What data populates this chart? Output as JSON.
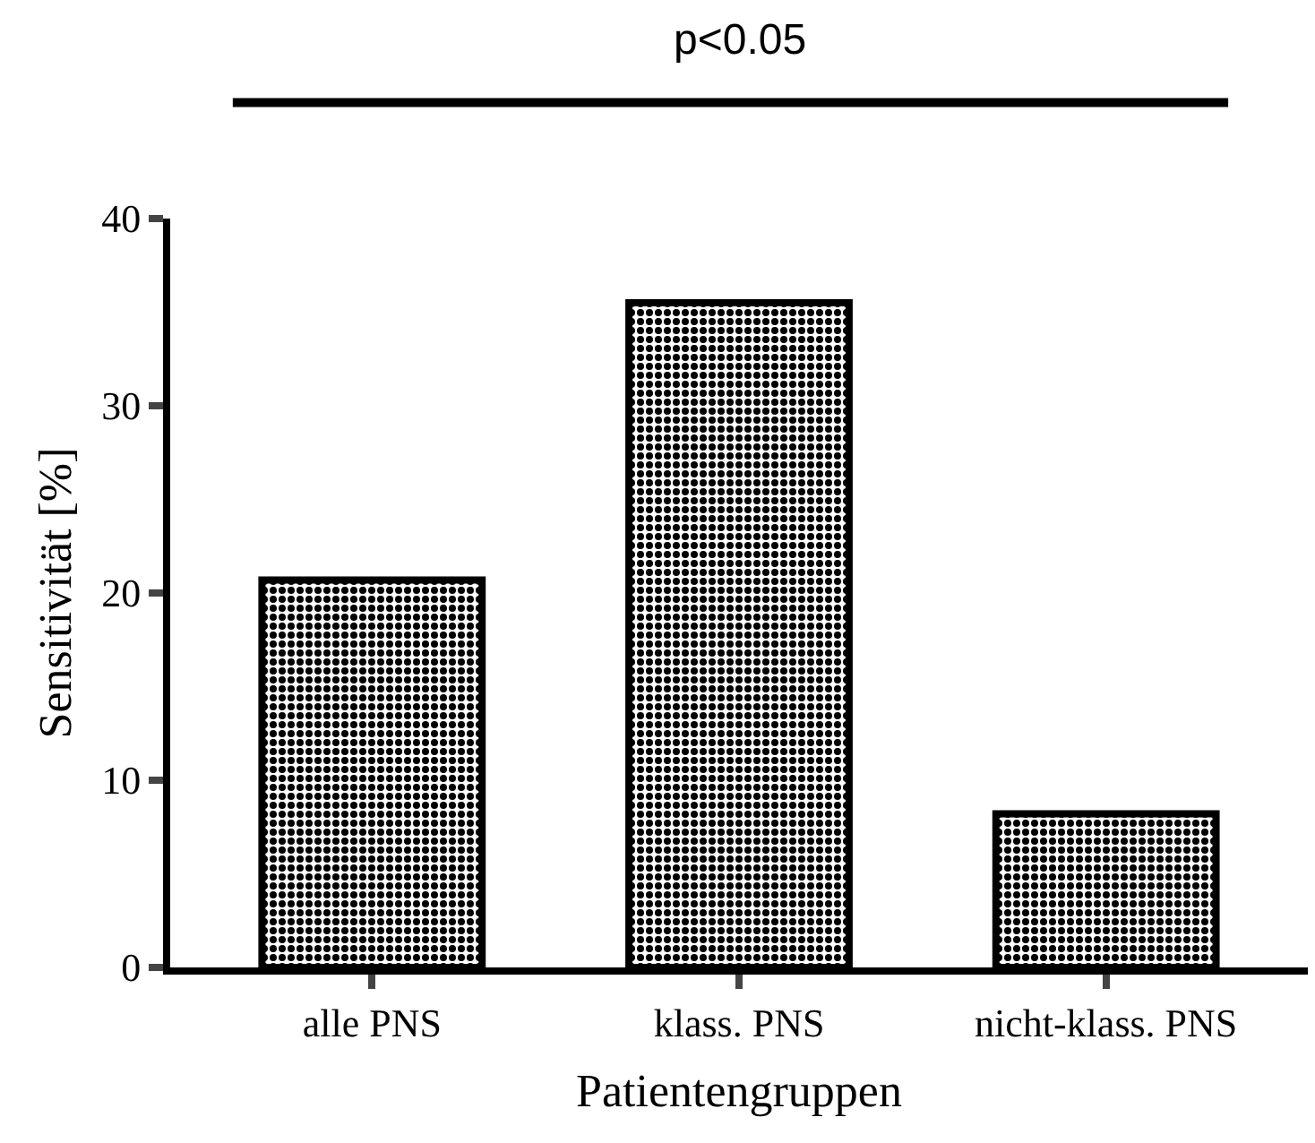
{
  "chart_data": {
    "type": "bar",
    "xlabel": "Patientengruppen",
    "ylabel": "Sensitivität [%]",
    "categories": [
      "alle PNS",
      "klass. PNS",
      "nicht-klass. PNS"
    ],
    "values": [
      20.7,
      35.5,
      8.2
    ],
    "color": "#000000",
    "ylim": [
      0,
      40
    ],
    "yticks": [
      0,
      10,
      20,
      30,
      40
    ],
    "grid": false,
    "annotations": [
      "p<0.05"
    ]
  }
}
